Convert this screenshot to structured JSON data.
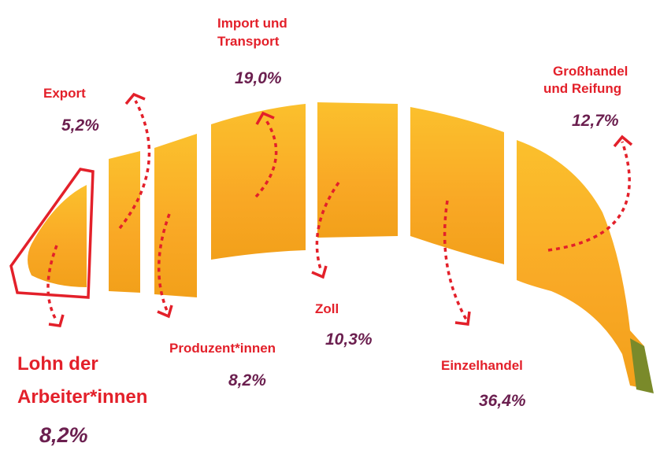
{
  "segments": [
    {
      "label_lines": [
        "Lohn der",
        "Arbeiter*innen"
      ],
      "share": "8,2%"
    },
    {
      "label_lines": [
        "Export"
      ],
      "share": "5,2%"
    },
    {
      "label_lines": [
        "Produzent*innen"
      ],
      "share": "8,2%"
    },
    {
      "label_lines": [
        "Import und",
        "Transport"
      ],
      "share": "19,0%"
    },
    {
      "label_lines": [
        "Zoll"
      ],
      "share": "10,3%"
    },
    {
      "label_lines": [
        "Einzelhandel"
      ],
      "share": "36,4%"
    },
    {
      "label_lines": [
        "Großhandel",
        "und Reifung"
      ],
      "share": "12,7%"
    }
  ]
}
